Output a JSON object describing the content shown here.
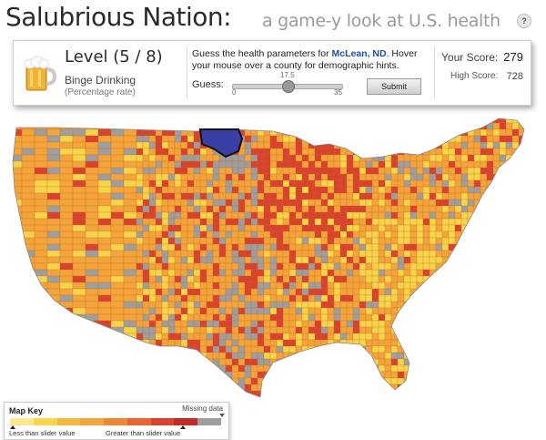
{
  "header": {
    "title": "Salubrious Nation:",
    "tagline": "a game-y look at U.S. health",
    "help_label": "?"
  },
  "panel": {
    "level": "Level (5 / 8)",
    "metric": "Binge Drinking",
    "unit": "(Percentage rate)",
    "prompt_before": "Guess the health parameters for ",
    "location": "McLean, ND",
    "prompt_after": ". Hover your mouse over a county for demographic hints.",
    "guess_label": "Guess:",
    "slider": {
      "min": "0",
      "max": "35",
      "value": "17.5",
      "value_fraction": 0.5
    },
    "submit_label": "Submit",
    "score_label": "Your Score:",
    "score": "279",
    "high_score_label": "High Score:",
    "high_score": "728",
    "icon": "beer-mug-icon"
  },
  "map": {
    "selected_county": "McLean, ND",
    "colors": {
      "low": "#f7d54a",
      "mid": "#f3a43a",
      "high": "#d9422e",
      "missing": "#9e9e9e",
      "selected": "#3a3fa6"
    }
  },
  "map_key": {
    "title": "Map Key",
    "missing_label": "Missing data",
    "less_label": "Less than slider value",
    "greater_label": "Greater than slider value",
    "scale_colors": [
      "#fbe88f",
      "#f7d54a",
      "#f6b940",
      "#f3a43a",
      "#ee8834",
      "#e86430",
      "#d9422e",
      "#c42a25",
      "#9e9e9e"
    ]
  }
}
